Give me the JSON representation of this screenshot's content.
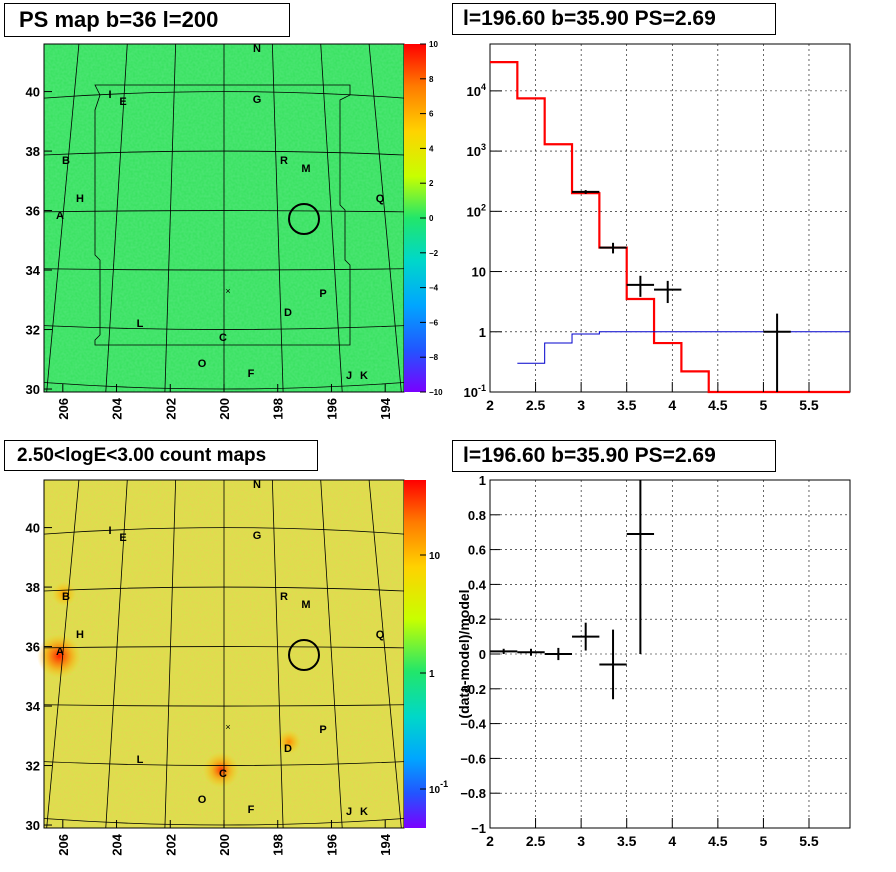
{
  "titles": {
    "top_left": "PS map b=36 l=200",
    "top_right": "l=196.60 b=35.90 PS=2.69",
    "bottom_left": "2.50<logE<3.00 count maps",
    "bottom_right": "l=196.60 b=35.90 PS=2.69"
  },
  "colors": {
    "model_red": "#ff0000",
    "background_blue": "#0000cc",
    "data_black": "#000000",
    "map_green": "#33e05a",
    "count_map_yellow": "#d4e64a"
  },
  "chart_data": [
    {
      "name": "ps_map",
      "type": "heatmap",
      "title": "PS map b=36 l=200",
      "x_ticks": [
        "206",
        "204",
        "202",
        "200",
        "198",
        "196",
        "194"
      ],
      "y_ticks": [
        "30",
        "32",
        "34",
        "36",
        "38",
        "40"
      ],
      "xlim": [
        206.7,
        193.3
      ],
      "ylim": [
        29.9,
        41.6
      ],
      "colorbar_ticks": [
        "10",
        "8",
        "6",
        "4",
        "2",
        "0",
        "−2",
        "−4",
        "−6",
        "−8",
        "−10"
      ],
      "colorbar_range": [
        -10,
        10
      ],
      "source_labels": [
        "N",
        "I",
        "E",
        "G",
        "B",
        "R",
        "M",
        "H",
        "Q",
        "A",
        "P",
        "D",
        "L",
        "C",
        "O",
        "F",
        "J",
        "K"
      ],
      "circle_center": [
        197.0,
        35.7
      ],
      "cross_position": [
        200.0,
        33.4
      ]
    },
    {
      "name": "spectrum",
      "type": "line",
      "title": "l=196.60 b=35.90 PS=2.69",
      "x_ticks": [
        "2",
        "2.5",
        "3",
        "3.5",
        "4",
        "4.5",
        "5",
        "5.5"
      ],
      "y_ticks": [
        "10^-1",
        "1",
        "10",
        "10^2",
        "10^3",
        "10^4"
      ],
      "y_scale": "log",
      "xlim": [
        2.0,
        5.95
      ],
      "ylim": [
        0.1,
        60000
      ],
      "grid": true,
      "series": [
        {
          "bin_edges": [
            2.0,
            2.3,
            2.6,
            2.9,
            3.2,
            3.5,
            3.8,
            4.1,
            4.4,
            4.7,
            5.0,
            5.3,
            5.6,
            5.95
          ],
          "values": [
            30000,
            7500,
            1300,
            200,
            25,
            3.5,
            0.65,
            0.22,
            0.1,
            0.1,
            0.1,
            0.1,
            0.1
          ]
        },
        {
          "bin_edges": [
            2.3,
            2.6,
            2.9,
            3.2,
            3.5,
            3.8,
            4.1,
            4.4,
            4.7,
            5.0,
            5.3,
            5.6,
            5.95
          ],
          "values": [
            0.3,
            0.65,
            0.92,
            1.0,
            1.0,
            1.0,
            1.0,
            1.0,
            1.0,
            1.0,
            1.0,
            1.0
          ]
        },
        {
          "points": [
            {
              "x": 3.05,
              "y": 210,
              "xerr": 0.15,
              "ylo": 195,
              "yhi": 225
            },
            {
              "x": 3.35,
              "y": 25,
              "xerr": 0.15,
              "ylo": 20,
              "yhi": 30
            },
            {
              "x": 3.65,
              "y": 6,
              "xerr": 0.15,
              "ylo": 3.8,
              "yhi": 8.5
            },
            {
              "x": 3.95,
              "y": 5,
              "xerr": 0.15,
              "ylo": 3.0,
              "yhi": 7.0
            },
            {
              "x": 5.15,
              "y": 1,
              "xerr": 0.15,
              "ylo": 0.1,
              "yhi": 2.0
            }
          ]
        }
      ]
    },
    {
      "name": "count_map",
      "type": "heatmap",
      "title": "2.50<logE<3.00 count maps",
      "x_ticks": [
        "206",
        "204",
        "202",
        "200",
        "198",
        "196",
        "194"
      ],
      "y_ticks": [
        "30",
        "32",
        "34",
        "36",
        "38",
        "40"
      ],
      "xlim": [
        206.7,
        193.3
      ],
      "ylim": [
        29.9,
        41.6
      ],
      "colorbar_ticks": [
        "10",
        "1",
        "10^-1"
      ],
      "colorbar_scale": "log",
      "source_labels": [
        "N",
        "I",
        "E",
        "G",
        "B",
        "R",
        "M",
        "H",
        "Q",
        "A",
        "P",
        "D",
        "L",
        "C",
        "O",
        "F",
        "J",
        "K"
      ],
      "bright_sources": [
        "A",
        "C",
        "D",
        "B"
      ]
    },
    {
      "name": "residuals",
      "type": "scatter",
      "title": "l=196.60 b=35.90 PS=2.69",
      "ylabel": "(data-model)/model",
      "x_ticks": [
        "2",
        "2.5",
        "3",
        "3.5",
        "4",
        "4.5",
        "5",
        "5.5"
      ],
      "y_ticks": [
        "1",
        "0.8",
        "0.6",
        "0.4",
        "0.2",
        "0",
        "−0.2",
        "−0.4",
        "−0.6",
        "−0.8",
        "−1"
      ],
      "xlim": [
        2.0,
        5.95
      ],
      "ylim": [
        -1,
        1
      ],
      "grid": true,
      "points": [
        {
          "x": 2.15,
          "y": 0.015,
          "xerr": 0.15,
          "yerr": 0.015
        },
        {
          "x": 2.45,
          "y": 0.01,
          "xerr": 0.15,
          "yerr": 0.02
        },
        {
          "x": 2.75,
          "y": 0.0,
          "xerr": 0.15,
          "yerr": 0.035
        },
        {
          "x": 3.05,
          "y": 0.1,
          "xerr": 0.15,
          "yerr": 0.08
        },
        {
          "x": 3.35,
          "y": -0.06,
          "xerr": 0.15,
          "yerr": 0.2
        },
        {
          "x": 3.65,
          "y": 0.69,
          "xerr": 0.15,
          "yerr": 0.69
        }
      ]
    }
  ]
}
